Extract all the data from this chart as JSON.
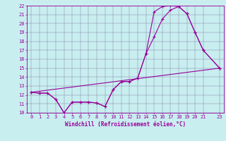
{
  "xlabel": "Windchill (Refroidissement éolien,°C)",
  "bg_color": "#c8eef0",
  "line_color": "#990099",
  "xlim": [
    -0.5,
    23.5
  ],
  "ylim": [
    10,
    22
  ],
  "xtick_vals": [
    0,
    1,
    2,
    3,
    4,
    5,
    6,
    7,
    8,
    9,
    10,
    11,
    12,
    13,
    14,
    15,
    16,
    17,
    18,
    19,
    20,
    21,
    23
  ],
  "ytick_vals": [
    10,
    11,
    12,
    13,
    14,
    15,
    16,
    17,
    18,
    19,
    20,
    21,
    22
  ],
  "line1_x": [
    0,
    1,
    2,
    3,
    4,
    5,
    6,
    7,
    8,
    9,
    10,
    11,
    12,
    13,
    14,
    15,
    16,
    17,
    18,
    19,
    20,
    21,
    23
  ],
  "line1_y": [
    12.3,
    12.2,
    12.2,
    11.5,
    10.0,
    11.2,
    11.2,
    11.2,
    11.1,
    10.7,
    12.6,
    13.5,
    13.5,
    13.9,
    16.6,
    18.5,
    20.5,
    21.5,
    21.9,
    21.1,
    19.0,
    17.0,
    15.0
  ],
  "line2_x": [
    0,
    1,
    2,
    3,
    4,
    5,
    6,
    7,
    8,
    9,
    10,
    11,
    12,
    13,
    14,
    15,
    16,
    17,
    18,
    19,
    20,
    21,
    23
  ],
  "line2_y": [
    12.3,
    12.2,
    12.2,
    11.5,
    10.0,
    11.2,
    11.2,
    11.2,
    11.1,
    10.7,
    12.6,
    13.5,
    13.5,
    13.9,
    16.6,
    21.3,
    21.9,
    22.0,
    21.9,
    21.1,
    19.0,
    17.0,
    15.0
  ],
  "line3_x": [
    0,
    23
  ],
  "line3_y": [
    12.3,
    15.0
  ],
  "font_size_ticks": 5,
  "font_size_xlabel": 5.5,
  "linewidth": 0.8,
  "markersize": 3
}
